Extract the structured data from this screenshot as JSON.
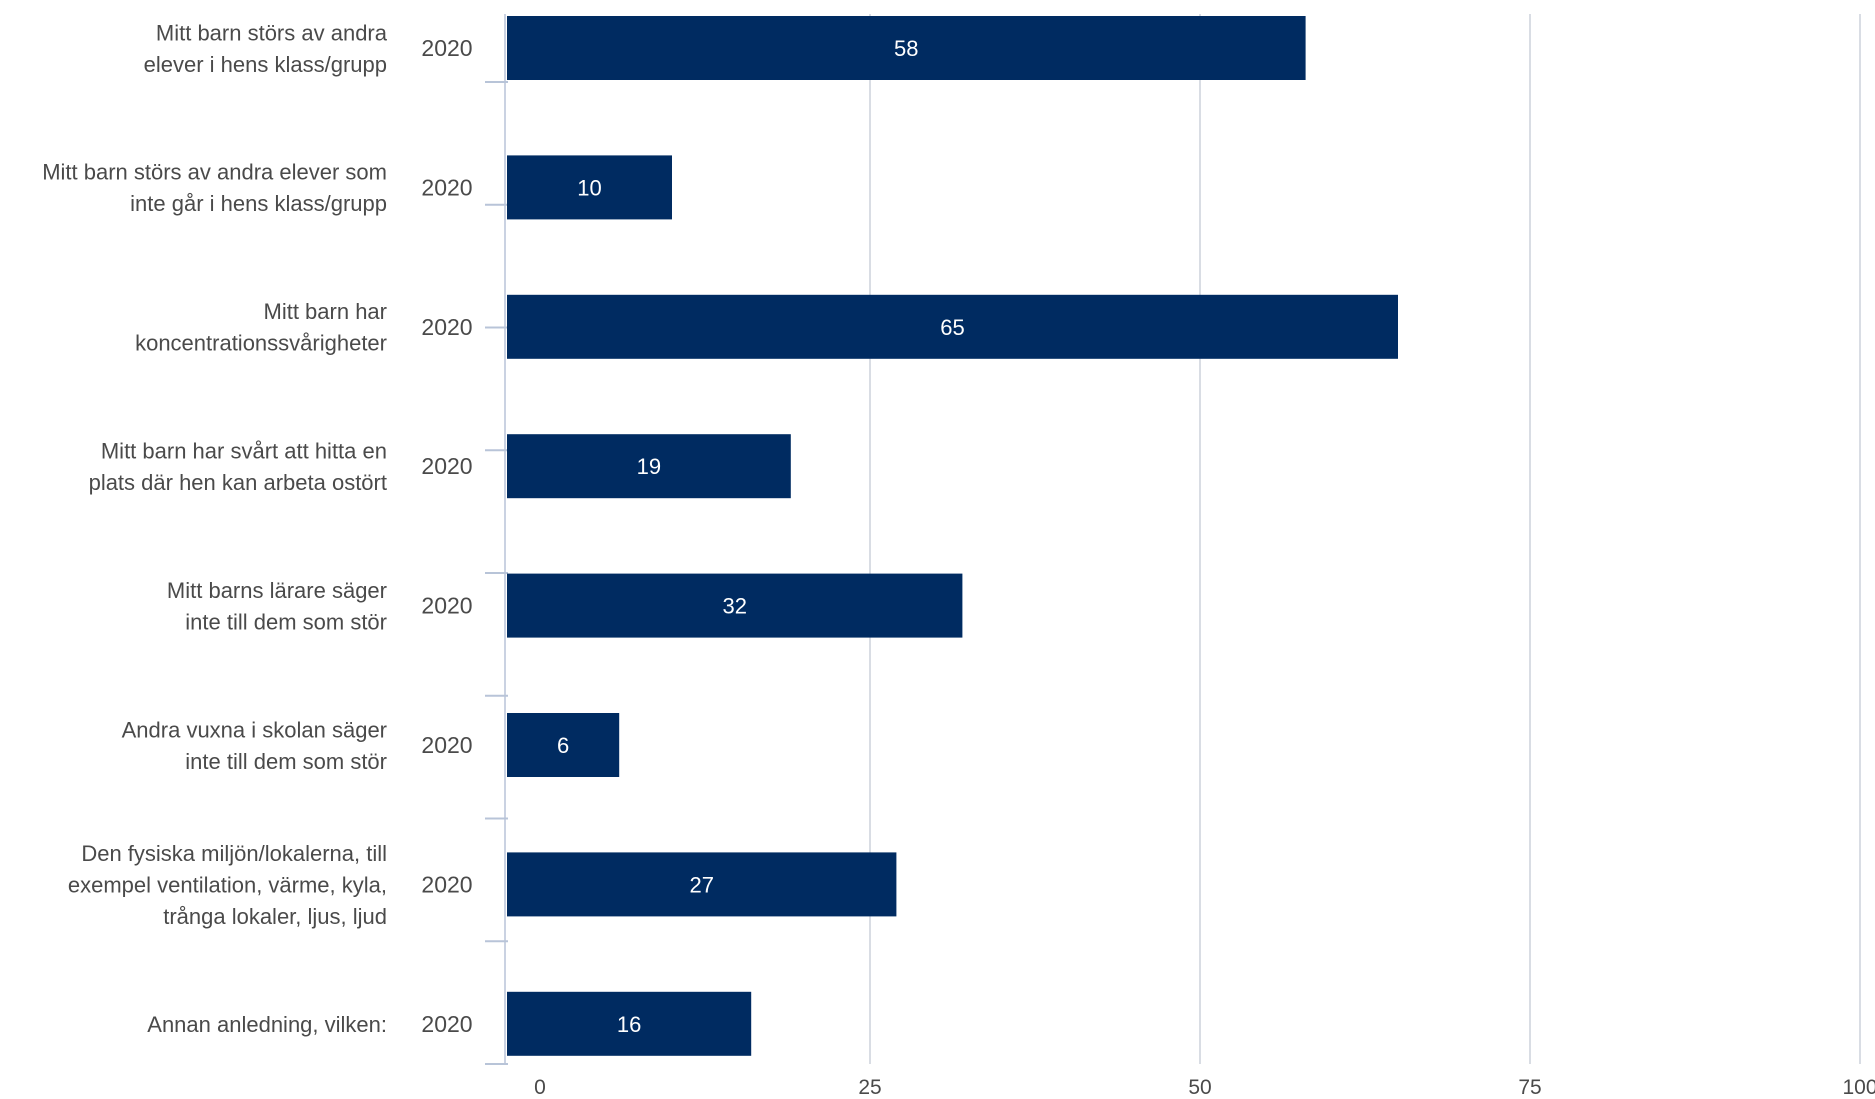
{
  "chart_data": {
    "type": "bar",
    "orientation": "horizontal",
    "title": "",
    "xlabel": "",
    "ylabel": "",
    "xlim": [
      0,
      100
    ],
    "x_ticks": [
      0,
      25,
      50,
      75,
      100
    ],
    "grid": true,
    "legend": "none",
    "bar_color": "#002b61",
    "grid_color": "#d9dde4",
    "axis_tick_color": "#b8c4d8",
    "categories": [
      [
        "Mitt barn störs av andra",
        "elever i hens klass/grupp"
      ],
      [
        "Mitt barn störs av andra elever som",
        "inte går i hens klass/grupp"
      ],
      [
        "Mitt barn har",
        "koncentrationssvårigheter"
      ],
      [
        "Mitt barn har svårt att hitta en",
        "plats där hen kan arbeta ostört"
      ],
      [
        "Mitt barns lärare säger",
        "inte till dem som stör"
      ],
      [
        "Andra vuxna i skolan säger",
        "inte till dem som stör"
      ],
      [
        "Den fysiska miljön/lokalerna, till",
        "exempel ventilation, värme, kyla,",
        "trånga lokaler, ljus, ljud"
      ],
      [
        "Annan anledning, vilken:"
      ]
    ],
    "series": [
      {
        "name": "2020",
        "values": [
          58,
          10,
          65,
          19,
          32,
          6,
          27,
          16
        ]
      }
    ]
  }
}
